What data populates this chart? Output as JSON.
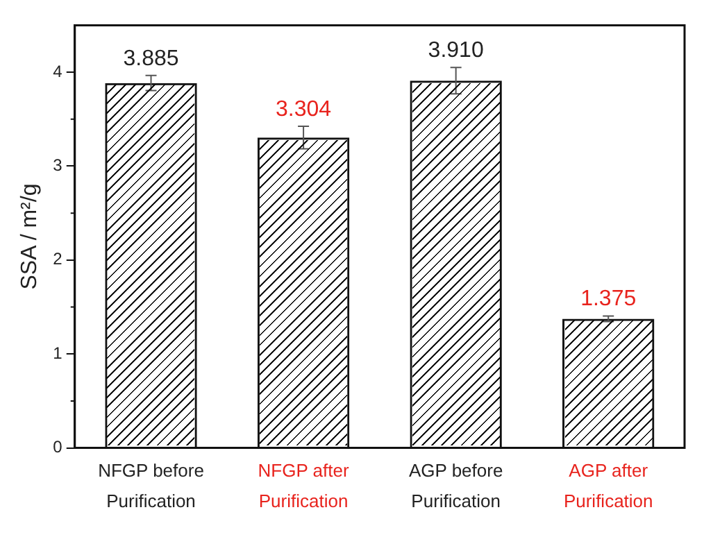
{
  "chart_data": {
    "type": "bar",
    "categories": [
      "NFGP before Purification",
      "NFGP after Purification",
      "AGP before Purification",
      "AGP after Purification"
    ],
    "values": [
      3.885,
      3.304,
      3.91,
      1.375
    ],
    "value_labels": [
      "3.885",
      "3.304",
      "3.910",
      "1.375"
    ],
    "errors": [
      0.08,
      0.12,
      0.14,
      0.03
    ],
    "color": "#111111",
    "ylabel": "SSA / m²/g",
    "ylim": [
      0,
      4.5
    ],
    "yticks": [
      0,
      1,
      2,
      3,
      4
    ],
    "grid": false,
    "legend": false
  }
}
